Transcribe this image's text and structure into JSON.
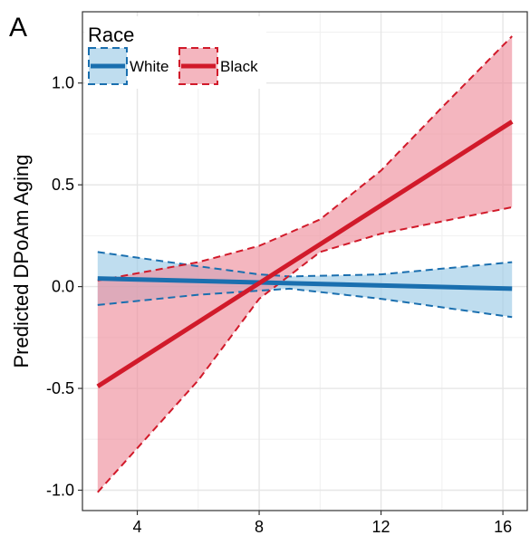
{
  "panel_label": "A",
  "chart_data": {
    "type": "line",
    "title": "",
    "xlabel": "",
    "ylabel": "Predicted DPoAm Aging",
    "xlim": [
      2.2,
      16.8
    ],
    "ylim": [
      -1.1,
      1.35
    ],
    "x_ticks": [
      4,
      8,
      12,
      16
    ],
    "y_ticks": [
      -1.0,
      -0.5,
      0.0,
      0.5,
      1.0
    ],
    "y_tick_labels": [
      "-1.0",
      "-0.5",
      "0.0",
      "0.5",
      "1.0"
    ],
    "grid": true,
    "legend": {
      "title": "Race",
      "placement": "top-left"
    },
    "series": [
      {
        "name": "White",
        "color": "#1a6faf",
        "fill": "#9ccbe6",
        "x": [
          2.7,
          16.3
        ],
        "y": [
          0.04,
          -0.01
        ],
        "lower": {
          "x": [
            2.7,
            6,
            9,
            12,
            16.3
          ],
          "y": [
            -0.09,
            -0.04,
            -0.01,
            -0.06,
            -0.15
          ]
        },
        "upper": {
          "x": [
            2.7,
            6,
            8,
            9,
            12,
            16.3
          ],
          "y": [
            0.17,
            0.1,
            0.06,
            0.05,
            0.06,
            0.12
          ]
        }
      },
      {
        "name": "Black",
        "color": "#d11a2a",
        "fill": "#ee8f9c",
        "x": [
          2.7,
          16.3
        ],
        "y": [
          -0.49,
          0.81
        ],
        "lower": {
          "x": [
            2.7,
            6,
            8,
            10,
            12,
            14,
            16.3
          ],
          "y": [
            -1.01,
            -0.46,
            -0.06,
            0.17,
            0.26,
            0.32,
            0.39
          ]
        },
        "upper": {
          "x": [
            2.7,
            6,
            8,
            10,
            12,
            14,
            16.3
          ],
          "y": [
            0.03,
            0.12,
            0.2,
            0.33,
            0.57,
            0.88,
            1.23
          ]
        }
      }
    ]
  }
}
